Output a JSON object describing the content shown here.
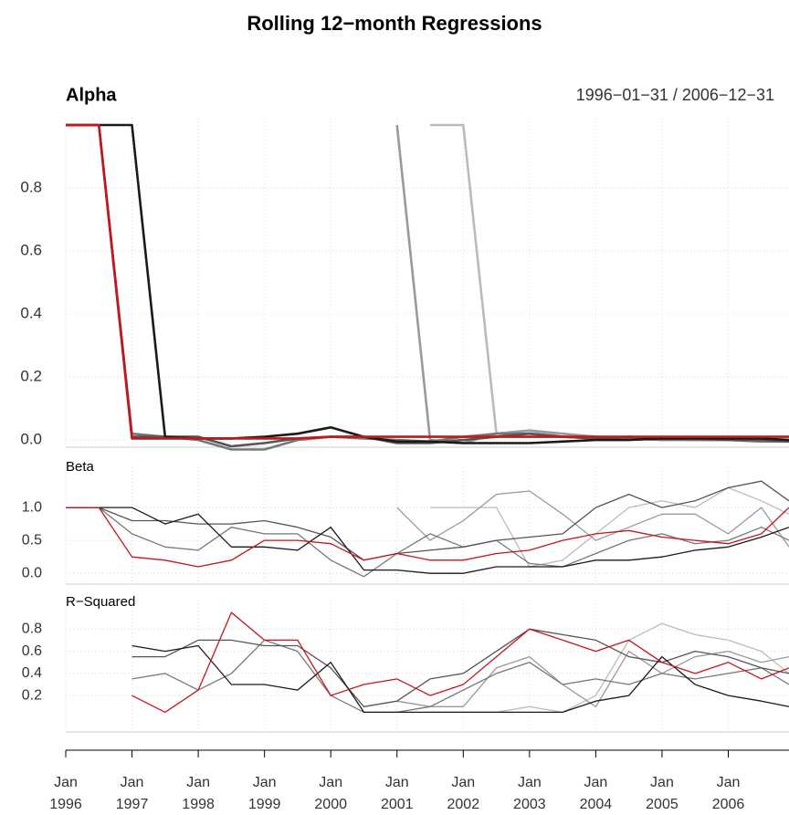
{
  "title": "Rolling 12−month Regressions",
  "chart_data": [
    {
      "type": "line",
      "title": "Alpha",
      "subtitle": "1996−01−31 / 2006−12−31",
      "x": [
        "1996-01",
        "1996-07",
        "1997-01",
        "1997-07",
        "1998-01",
        "1998-07",
        "1999-01",
        "1999-07",
        "2000-01",
        "2000-07",
        "2001-01",
        "2001-07",
        "2002-01",
        "2002-07",
        "2003-01",
        "2003-07",
        "2004-01",
        "2004-07",
        "2005-01",
        "2005-07",
        "2006-01",
        "2006-07",
        "2006-12"
      ],
      "ylim": [
        -0.02,
        1.0
      ],
      "yticks": [
        {
          "value": 0,
          "label": "0.0"
        },
        {
          "value": 0.2,
          "label": "0.2"
        },
        {
          "value": 0.4,
          "label": "0.4"
        },
        {
          "value": 0.6,
          "label": "0.6"
        },
        {
          "value": 0.8,
          "label": "0.8"
        }
      ],
      "grid": true,
      "series": [
        {
          "color": "#bbbbbb",
          "values": [
            null,
            null,
            null,
            null,
            null,
            null,
            null,
            null,
            null,
            null,
            null,
            1,
            1,
            0.02,
            0.03,
            0.01,
            0.01,
            0.005,
            0.005,
            0,
            0.005,
            0.005,
            0
          ]
        },
        {
          "color": "#999999",
          "values": [
            null,
            null,
            null,
            null,
            null,
            null,
            null,
            null,
            null,
            null,
            1,
            0,
            -0.01,
            0.02,
            0.03,
            0.02,
            0.01,
            0.005,
            0.005,
            0,
            0,
            0,
            0
          ]
        },
        {
          "color": "#777777",
          "values": [
            1,
            1,
            0.02,
            0.01,
            0,
            -0.03,
            -0.03,
            0,
            0.01,
            0.005,
            0,
            -0.005,
            0.01,
            0.02,
            0.02,
            0.01,
            0.005,
            0.005,
            0,
            0,
            0,
            -0.005,
            -0.005
          ]
        },
        {
          "color": "#555555",
          "values": [
            1,
            1,
            0.01,
            0.01,
            0.01,
            -0.02,
            -0.01,
            0.005,
            0.01,
            0.01,
            -0.01,
            -0.01,
            0,
            0.01,
            0.02,
            0.01,
            0.005,
            0.01,
            0.005,
            0.005,
            0,
            0,
            -0.005
          ]
        },
        {
          "color": "#1a1a1a",
          "values": [
            1,
            1,
            1,
            0.01,
            0.005,
            0.005,
            0.01,
            0.02,
            0.04,
            0.01,
            -0.005,
            -0.005,
            -0.01,
            -0.01,
            -0.01,
            -0.005,
            0,
            0,
            0.005,
            0.005,
            0.005,
            0.005,
            0
          ]
        },
        {
          "color": "#c4161c",
          "values": [
            1,
            1,
            0.005,
            0.005,
            0.005,
            0.005,
            0.005,
            0.005,
            0.01,
            0.01,
            0.01,
            0.01,
            0.01,
            0.01,
            0.01,
            0.01,
            0.01,
            0.01,
            0.01,
            0.01,
            0.01,
            0.01,
            0.01
          ]
        }
      ]
    },
    {
      "type": "line",
      "title": "Beta",
      "x": [
        "1996-01",
        "1996-07",
        "1997-01",
        "1997-07",
        "1998-01",
        "1998-07",
        "1999-01",
        "1999-07",
        "2000-01",
        "2000-07",
        "2001-01",
        "2001-07",
        "2002-01",
        "2002-07",
        "2003-01",
        "2003-07",
        "2004-01",
        "2004-07",
        "2005-01",
        "2005-07",
        "2006-01",
        "2006-07",
        "2006-12"
      ],
      "ylim": [
        -0.15,
        1.5
      ],
      "yticks": [
        {
          "value": 0,
          "label": "0.0"
        },
        {
          "value": 0.5,
          "label": "0.5"
        },
        {
          "value": 1,
          "label": "1.0"
        }
      ],
      "grid": true,
      "series": [
        {
          "color": "#bbbbbb",
          "values": [
            null,
            null,
            null,
            null,
            null,
            null,
            null,
            null,
            null,
            null,
            null,
            1,
            1,
            1,
            0.1,
            0.2,
            0.6,
            1.0,
            1.1,
            1.0,
            1.3,
            1.1,
            0.9
          ]
        },
        {
          "color": "#999999",
          "values": [
            null,
            null,
            null,
            null,
            null,
            null,
            null,
            null,
            null,
            null,
            1,
            0.5,
            0.8,
            1.2,
            1.25,
            0.9,
            0.5,
            0.7,
            0.9,
            0.9,
            0.6,
            1.0,
            0.4
          ]
        },
        {
          "color": "#777777",
          "values": [
            1,
            1,
            0.6,
            0.4,
            0.35,
            0.7,
            0.6,
            0.6,
            0.2,
            -0.05,
            0.3,
            0.6,
            0.4,
            0.5,
            0.15,
            0.1,
            0.3,
            0.5,
            0.6,
            0.45,
            0.5,
            0.7,
            0.5
          ]
        },
        {
          "color": "#555555",
          "values": [
            1,
            1,
            0.8,
            0.8,
            0.75,
            0.75,
            0.8,
            0.7,
            0.55,
            0.2,
            0.3,
            0.35,
            0.4,
            0.5,
            0.55,
            0.6,
            1.0,
            1.2,
            1.0,
            1.1,
            1.3,
            1.4,
            1.1
          ]
        },
        {
          "color": "#1a1a1a",
          "values": [
            1,
            1,
            1,
            0.75,
            0.9,
            0.4,
            0.4,
            0.35,
            0.7,
            0.05,
            0.05,
            0,
            0,
            0.1,
            0.1,
            0.1,
            0.2,
            0.2,
            0.25,
            0.35,
            0.4,
            0.55,
            0.7
          ]
        },
        {
          "color": "#c4161c",
          "values": [
            1,
            1,
            0.25,
            0.2,
            0.1,
            0.2,
            0.5,
            0.5,
            0.45,
            0.2,
            0.3,
            0.2,
            0.2,
            0.3,
            0.35,
            0.5,
            0.6,
            0.65,
            0.55,
            0.5,
            0.45,
            0.6,
            1.0
          ]
        }
      ]
    },
    {
      "type": "line",
      "title": "R−Squared",
      "x": [
        "1996-01",
        "1996-07",
        "1997-01",
        "1997-07",
        "1998-01",
        "1998-07",
        "1999-01",
        "1999-07",
        "2000-01",
        "2000-07",
        "2001-01",
        "2001-07",
        "2002-01",
        "2002-07",
        "2003-01",
        "2003-07",
        "2004-01",
        "2004-07",
        "2005-01",
        "2005-07",
        "2006-01",
        "2006-07",
        "2006-12"
      ],
      "xlim": [
        "1996-01",
        "2006-12"
      ],
      "xticks": [
        {
          "value": "1996-01",
          "label": "Jan 1996"
        },
        {
          "value": "1997-01",
          "label": "Jan 1997"
        },
        {
          "value": "1998-01",
          "label": "Jan 1998"
        },
        {
          "value": "1999-01",
          "label": "Jan 1999"
        },
        {
          "value": "2000-01",
          "label": "Jan 2000"
        },
        {
          "value": "2001-01",
          "label": "Jan 2001"
        },
        {
          "value": "2002-01",
          "label": "Jan 2002"
        },
        {
          "value": "2003-01",
          "label": "Jan 2003"
        },
        {
          "value": "2004-01",
          "label": "Jan 2004"
        },
        {
          "value": "2005-01",
          "label": "Jan 2005"
        },
        {
          "value": "2006-01",
          "label": "Jan 2006"
        }
      ],
      "ylim": [
        -0.12,
        1.0
      ],
      "yticks": [
        0.2,
        0.4,
        0.6,
        0.8
      ],
      "grid": true,
      "series": [
        {
          "color": "#bbbbbb",
          "values": [
            null,
            null,
            null,
            null,
            null,
            null,
            null,
            null,
            null,
            null,
            null,
            0.05,
            0.05,
            0.05,
            0.1,
            0.05,
            0.2,
            0.7,
            0.85,
            0.75,
            0.7,
            0.6,
            0.4
          ]
        },
        {
          "color": "#999999",
          "values": [
            null,
            null,
            null,
            null,
            null,
            null,
            null,
            null,
            null,
            null,
            0.15,
            0.1,
            0.1,
            0.45,
            0.55,
            0.3,
            0.1,
            0.6,
            0.4,
            0.55,
            0.6,
            0.5,
            0.55
          ]
        },
        {
          "color": "#777777",
          "values": [
            null,
            null,
            0.35,
            0.4,
            0.25,
            0.4,
            0.7,
            0.6,
            0.2,
            0.05,
            0.05,
            0.1,
            0.25,
            0.4,
            0.5,
            0.3,
            0.35,
            0.3,
            0.4,
            0.35,
            0.4,
            0.45,
            0.3
          ]
        },
        {
          "color": "#555555",
          "values": [
            null,
            null,
            0.55,
            0.55,
            0.7,
            0.7,
            0.65,
            0.65,
            0.45,
            0.1,
            0.15,
            0.35,
            0.4,
            0.6,
            0.8,
            0.75,
            0.7,
            0.55,
            0.5,
            0.6,
            0.55,
            0.45,
            0.4
          ]
        },
        {
          "color": "#1a1a1a",
          "values": [
            null,
            null,
            0.65,
            0.6,
            0.65,
            0.3,
            0.3,
            0.25,
            0.5,
            0.05,
            0.05,
            0.05,
            0.05,
            0.05,
            0.05,
            0.05,
            0.15,
            0.2,
            0.55,
            0.3,
            0.2,
            0.15,
            0.1
          ]
        },
        {
          "color": "#c4161c",
          "values": [
            null,
            null,
            0.2,
            0.05,
            0.25,
            0.95,
            0.7,
            0.7,
            0.2,
            0.3,
            0.35,
            0.2,
            0.3,
            0.55,
            0.8,
            0.7,
            0.6,
            0.7,
            0.5,
            0.4,
            0.5,
            0.35,
            0.45
          ]
        }
      ]
    }
  ]
}
